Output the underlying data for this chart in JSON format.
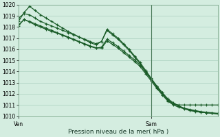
{
  "xlabel": "Pression niveau de la mer( hPa )",
  "bg_color": "#d4ede0",
  "grid_color": "#aacfbe",
  "line_color": "#1a5c28",
  "vline_color": "#4a7a5a",
  "ylim": [
    1010,
    1020
  ],
  "yticks": [
    1010,
    1011,
    1012,
    1013,
    1014,
    1015,
    1016,
    1017,
    1018,
    1019,
    1020
  ],
  "xlim": [
    0,
    36
  ],
  "sam_x": 24,
  "series": [
    [
      1018.8,
      1019.2,
      1019.1,
      1018.8,
      1018.5,
      1018.3,
      1018.1,
      1017.9,
      1017.7,
      1017.5,
      1017.3,
      1017.1,
      1016.9,
      1016.7,
      1016.5,
      1016.7,
      1017.7,
      1017.3,
      1016.9,
      1016.4,
      1015.9,
      1015.3,
      1014.7,
      1014.0,
      1013.3,
      1012.6,
      1012.0,
      1011.4,
      1011.1,
      1011.0,
      1011.0,
      1011.0,
      1011.0,
      1011.0,
      1011.0,
      1011.0,
      1011.0
    ],
    [
      1018.5,
      1019.3,
      1019.85,
      1019.5,
      1019.1,
      1018.8,
      1018.5,
      1018.2,
      1017.9,
      1017.6,
      1017.35,
      1017.1,
      1016.85,
      1016.6,
      1016.4,
      1016.7,
      1017.8,
      1017.4,
      1017.0,
      1016.5,
      1016.0,
      1015.4,
      1014.8,
      1014.1,
      1013.4,
      1012.7,
      1012.1,
      1011.5,
      1011.1,
      1010.9,
      1010.7,
      1010.6,
      1010.5,
      1010.4,
      1010.35,
      1010.3,
      1010.25
    ],
    [
      1018.1,
      1018.7,
      1018.45,
      1018.2,
      1018.0,
      1017.8,
      1017.6,
      1017.45,
      1017.25,
      1017.05,
      1016.85,
      1016.65,
      1016.45,
      1016.25,
      1016.1,
      1016.2,
      1016.9,
      1016.6,
      1016.25,
      1015.85,
      1015.45,
      1015.05,
      1014.6,
      1013.95,
      1013.3,
      1012.7,
      1012.1,
      1011.55,
      1011.2,
      1010.9,
      1010.7,
      1010.55,
      1010.45,
      1010.35,
      1010.3,
      1010.25,
      1010.2
    ],
    [
      1018.2,
      1018.65,
      1018.5,
      1018.3,
      1018.1,
      1017.9,
      1017.7,
      1017.5,
      1017.3,
      1017.1,
      1016.9,
      1016.7,
      1016.5,
      1016.3,
      1016.15,
      1016.1,
      1016.75,
      1016.45,
      1016.1,
      1015.7,
      1015.3,
      1014.9,
      1014.45,
      1013.8,
      1013.15,
      1012.5,
      1011.9,
      1011.35,
      1011.0,
      1010.8,
      1010.65,
      1010.5,
      1010.4,
      1010.35,
      1010.3,
      1010.25,
      1010.2
    ]
  ],
  "ven_label": "Ven",
  "sam_label": "Sam",
  "xlabel_fontsize": 6.5,
  "tick_fontsize": 5.5,
  "line_width": 0.9,
  "marker_size": 2.5
}
